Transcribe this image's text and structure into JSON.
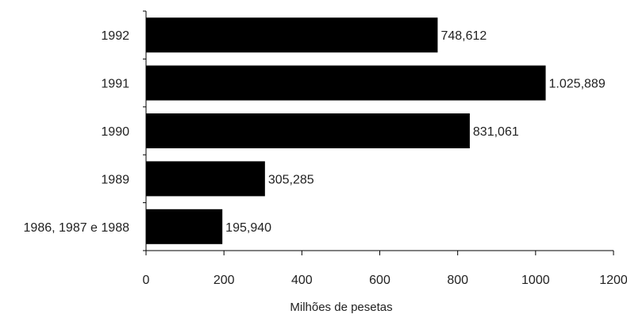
{
  "chart_data": {
    "type": "bar",
    "orientation": "horizontal",
    "categories": [
      "1992",
      "1991",
      "1990",
      "1989",
      "1986, 1987 e 1988"
    ],
    "values": [
      748.612,
      1025.889,
      831.061,
      305.285,
      195.94
    ],
    "data_labels": [
      "748,612",
      "1.025,889",
      "831,061",
      "305,285",
      "195,940"
    ],
    "title": "",
    "xlabel": "Milhões de pesetas",
    "ylabel": "",
    "xlim": [
      0,
      1200
    ],
    "xticks": [
      0,
      200,
      400,
      600,
      800,
      1000,
      1200
    ],
    "grid": false,
    "legend": "none",
    "bar_color": "#000000"
  }
}
